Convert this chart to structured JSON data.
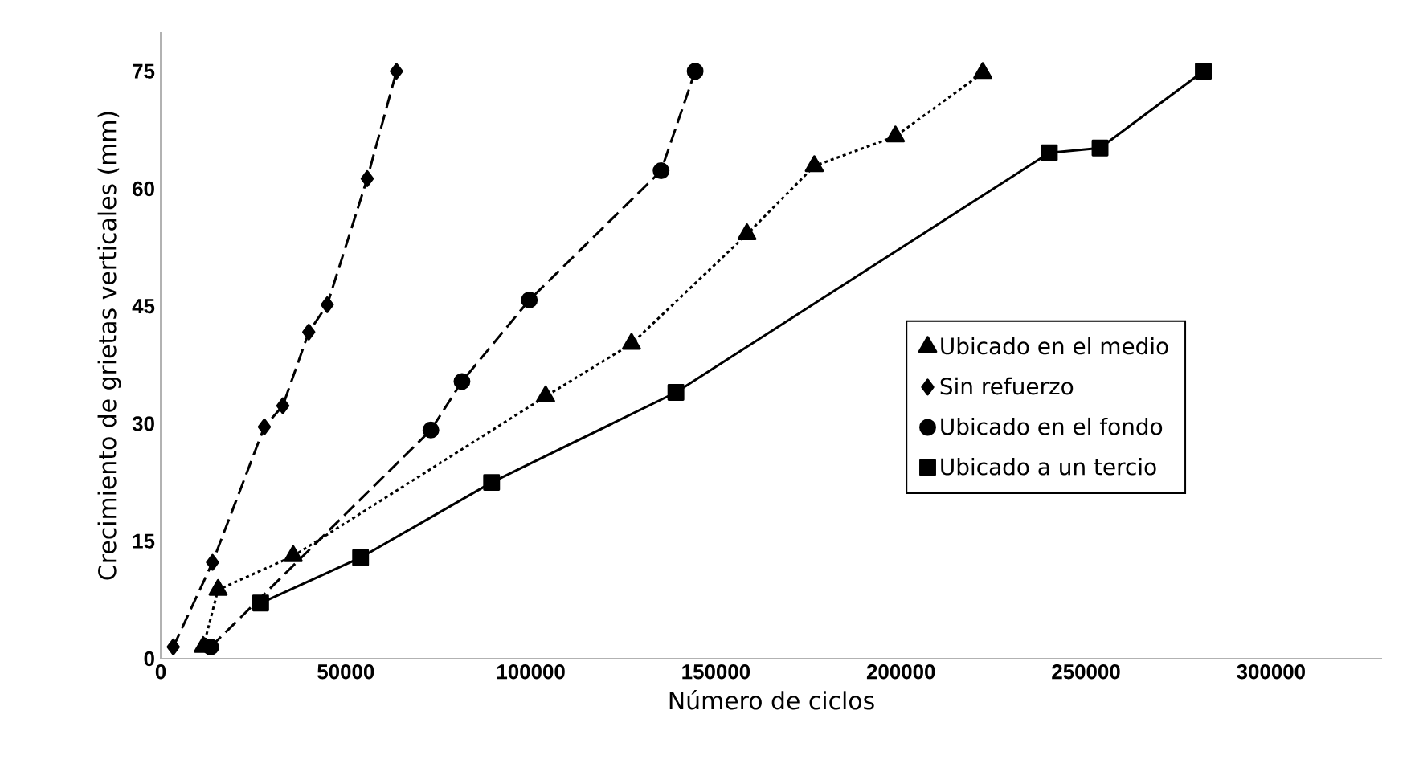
{
  "chart_data": {
    "type": "line",
    "xlabel": "Número de ciclos",
    "ylabel": "Crecimiento de grietas verticales (mm)",
    "xlim": [
      0,
      330000
    ],
    "ylim": [
      0,
      80
    ],
    "xticks": [
      0,
      50000,
      100000,
      150000,
      200000,
      250000,
      300000
    ],
    "yticks": [
      0,
      15,
      30,
      45,
      60,
      75
    ],
    "grid": false,
    "legend": "bottom right",
    "series": [
      {
        "name": "Ubicado en el medio",
        "color": "#000000",
        "marker": "triangle",
        "line_style": "dotted",
        "x": [
          11500,
          15500,
          35800,
          104000,
          127200,
          158400,
          176600,
          198500,
          222100
        ],
        "values": [
          1.5,
          8.8,
          13.1,
          33.5,
          40.2,
          54.2,
          62.9,
          66.7,
          74.8
        ]
      },
      {
        "name": "Sin refuerzo",
        "color": "#000000",
        "marker": "diamond",
        "line_style": "dashed",
        "x": [
          3400,
          14000,
          28000,
          33000,
          40000,
          45000,
          55800,
          63700
        ],
        "values": [
          1.5,
          12.3,
          29.6,
          32.3,
          41.7,
          45.2,
          61.3,
          75
        ]
      },
      {
        "name": "Ubicado en el fondo",
        "color": "#000000",
        "marker": "circle",
        "line_style": "dashed",
        "x": [
          13500,
          73000,
          81400,
          99600,
          135200,
          144400
        ],
        "values": [
          1.5,
          29.2,
          35.4,
          45.8,
          62.3,
          75
        ]
      },
      {
        "name": "Ubicado a un tercio",
        "color": "#000000",
        "marker": "square",
        "line_style": "solid",
        "x": [
          27000,
          54000,
          89400,
          139200,
          240100,
          253800,
          281700
        ],
        "values": [
          7.1,
          12.9,
          22.5,
          34,
          64.6,
          65.2,
          75
        ]
      }
    ]
  }
}
